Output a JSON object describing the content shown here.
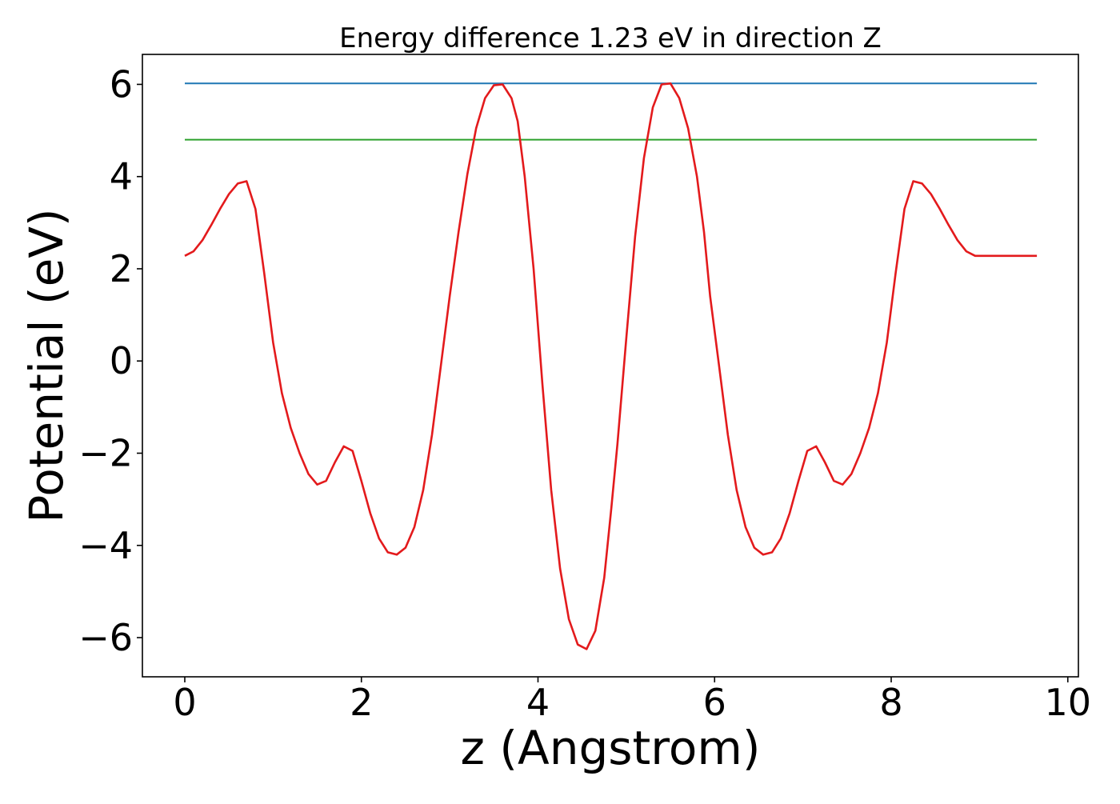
{
  "chart_data": {
    "type": "line",
    "title": "Energy difference 1.23 eV in direction Z",
    "xlabel": "z (Angstrom)",
    "ylabel": "Potential (eV)",
    "xlim": [
      -0.48,
      10.12
    ],
    "ylim": [
      -6.85,
      6.65
    ],
    "x_ticks": [
      0,
      2,
      4,
      6,
      8,
      10
    ],
    "x_tick_labels": [
      "0",
      "2",
      "4",
      "6",
      "8",
      "10"
    ],
    "y_ticks": [
      -6,
      -4,
      -2,
      0,
      2,
      4,
      6
    ],
    "y_tick_labels": [
      "−6",
      "−4",
      "−2",
      "0",
      "2",
      "4",
      "6"
    ],
    "grid": false,
    "legend": "none",
    "series": [
      {
        "color": "#1f77b4",
        "x": [
          0,
          9.65
        ],
        "y": [
          6.02,
          6.02
        ]
      },
      {
        "color": "#2ca02c",
        "x": [
          0,
          9.65
        ],
        "y": [
          4.8,
          4.8
        ]
      },
      {
        "color": "#e31a1c",
        "x": [
          0.0,
          0.1,
          0.2,
          0.3,
          0.4,
          0.5,
          0.6,
          0.7,
          0.8,
          0.9,
          1.0,
          1.1,
          1.2,
          1.3,
          1.4,
          1.5,
          1.6,
          1.7,
          1.8,
          1.9,
          2.0,
          2.1,
          2.2,
          2.3,
          2.4,
          2.5,
          2.6,
          2.7,
          2.8,
          2.9,
          3.0,
          3.1,
          3.2,
          3.3,
          3.4,
          3.5,
          3.6,
          3.7,
          3.77,
          3.85,
          3.95,
          4.05,
          4.15,
          4.25,
          4.35,
          4.45,
          4.55,
          4.65,
          4.75,
          4.83,
          4.9,
          5.0,
          5.1,
          5.2,
          5.3,
          5.4,
          5.5,
          5.6,
          5.7,
          5.8,
          5.88,
          5.95,
          6.05,
          6.15,
          6.25,
          6.35,
          6.45,
          6.55,
          6.65,
          6.75,
          6.85,
          6.95,
          7.05,
          7.15,
          7.25,
          7.35,
          7.45,
          7.55,
          7.65,
          7.75,
          7.85,
          7.95,
          8.05,
          8.15,
          8.25,
          8.35,
          8.45,
          8.55,
          8.65,
          8.75,
          8.85,
          8.95,
          9.05,
          9.15,
          9.25,
          9.35,
          9.45,
          9.55,
          9.65
        ],
        "y": [
          2.28,
          2.38,
          2.62,
          2.95,
          3.3,
          3.62,
          3.85,
          3.9,
          3.3,
          1.9,
          0.4,
          -0.7,
          -1.45,
          -2.0,
          -2.45,
          -2.68,
          -2.6,
          -2.2,
          -1.85,
          -1.95,
          -2.6,
          -3.3,
          -3.85,
          -4.15,
          -4.2,
          -4.05,
          -3.6,
          -2.8,
          -1.6,
          -0.1,
          1.4,
          2.8,
          4.05,
          5.05,
          5.7,
          5.98,
          6.0,
          5.7,
          5.2,
          4.0,
          2.0,
          -0.5,
          -2.8,
          -4.5,
          -5.6,
          -6.15,
          -6.25,
          -5.85,
          -4.7,
          -3.2,
          -1.8,
          0.5,
          2.7,
          4.4,
          5.5,
          6.0,
          6.02,
          5.7,
          5.05,
          4.0,
          2.8,
          1.4,
          -0.1,
          -1.6,
          -2.8,
          -3.6,
          -4.05,
          -4.2,
          -4.15,
          -3.85,
          -3.3,
          -2.6,
          -1.95,
          -1.85,
          -2.2,
          -2.6,
          -2.68,
          -2.45,
          -2.0,
          -1.45,
          -0.7,
          0.4,
          1.9,
          3.3,
          3.9,
          3.85,
          3.62,
          3.3,
          2.95,
          2.62,
          2.38,
          2.28,
          2.28,
          2.28,
          2.28,
          2.28,
          2.28,
          2.28,
          2.28
        ]
      }
    ]
  }
}
